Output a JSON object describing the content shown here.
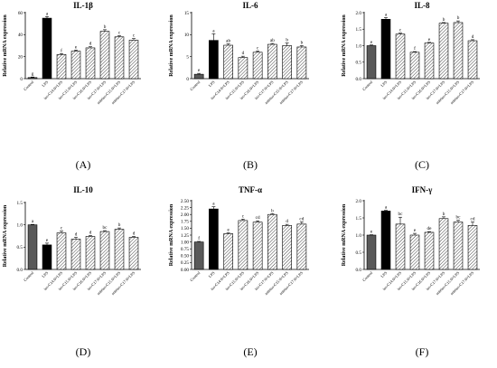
{
  "chart_data": [
    {
      "type": "bar",
      "panel_label": "(A)",
      "title": "IL-1β",
      "ylabel": "Relative mRNA expression",
      "categories": [
        "Control",
        "LPS",
        "iso-C14:0+LPS",
        "iso-C15:0+LPS",
        "iso-C16:0+LPS",
        "iso-C17:0+LPS",
        "anteiso-C15:0+LPS",
        "anteiso-C17:0+LPS"
      ],
      "values": [
        1,
        55,
        22,
        25,
        28,
        43,
        38,
        35
      ],
      "errors": [
        0.5,
        1.5,
        0.8,
        1.0,
        1.0,
        1.5,
        1.0,
        1.5
      ],
      "letters": [
        "g",
        "a",
        "f",
        "e",
        "d",
        "b",
        "c",
        "c"
      ],
      "ylim": [
        0,
        60
      ],
      "yticks": [
        "0",
        "20",
        "40",
        "60"
      ]
    },
    {
      "type": "bar",
      "panel_label": "(B)",
      "title": "IL-6",
      "ylabel": "Relative mRNA expression",
      "categories": [
        "Control",
        "LPS",
        "iso-C14:0+LPS",
        "iso-C15:0+LPS",
        "iso-C16:0+LPS",
        "iso-C17:0+LPS",
        "anteiso-C15:0+LPS",
        "anteiso-C17:0+LPS"
      ],
      "values": [
        1,
        8.7,
        7.6,
        4.8,
        6.0,
        7.8,
        7.5,
        7.2
      ],
      "errors": [
        0.2,
        1.5,
        0.3,
        0.3,
        0.3,
        0.2,
        0.6,
        0.3
      ],
      "letters": [
        "e",
        "a",
        "ab",
        "d",
        "c",
        "ab",
        "b",
        "b"
      ],
      "ylim": [
        0,
        15
      ],
      "yticks": [
        "0",
        "5",
        "10",
        "15"
      ]
    },
    {
      "type": "bar",
      "panel_label": "(C)",
      "title": "IL-8",
      "ylabel": "Relative mRNA expression",
      "categories": [
        "Control",
        "LPS",
        "iso-C14:0+LPS",
        "iso-C15:0+LPS",
        "iso-C16:0+LPS",
        "iso-C17:0+LPS",
        "anteiso-C15:0+LPS",
        "anteiso-C17:0+LPS"
      ],
      "values": [
        1.0,
        1.8,
        1.35,
        0.8,
        1.08,
        1.68,
        1.7,
        1.15
      ],
      "errors": [
        0.02,
        0.05,
        0.03,
        0.02,
        0.02,
        0.02,
        0.05,
        0.03
      ],
      "letters": [
        "e",
        "a",
        "c",
        "f",
        "e",
        "b",
        "b",
        "d"
      ],
      "ylim": [
        0,
        2.0
      ],
      "yticks": [
        "0.0",
        "0.5",
        "1.0",
        "1.5",
        "2.0"
      ]
    },
    {
      "type": "bar",
      "panel_label": "(D)",
      "title": "IL-10",
      "ylabel": "Relative mRNA expression",
      "categories": [
        "Control",
        "LPS",
        "iso-C14:0+LPS",
        "iso-C15:0+LPS",
        "iso-C16:0+LPS",
        "iso-C17:0+LPS",
        "anteiso-C15:0+LPS",
        "anteiso-C17:0+LPS"
      ],
      "values": [
        1.0,
        0.55,
        0.82,
        0.68,
        0.74,
        0.85,
        0.9,
        0.72
      ],
      "errors": [
        0.01,
        0.04,
        0.04,
        0.04,
        0.02,
        0.02,
        0.03,
        0.02
      ],
      "letters": [
        "a",
        "e",
        "c",
        "d",
        "d",
        "bc",
        "b",
        "d"
      ],
      "ylim": [
        0,
        1.5
      ],
      "yticks": [
        "0.0",
        "0.5",
        "1.0",
        "1.5"
      ]
    },
    {
      "type": "bar",
      "panel_label": "(E)",
      "title": "TNF-α",
      "ylabel": "Relative mRNA expression",
      "categories": [
        "Control",
        "LPS",
        "iso-C14:0+LPS",
        "iso-C15:0+LPS",
        "iso-C16:0+LPS",
        "iso-C17:0+LPS",
        "anteiso-C15:0+LPS",
        "anteiso-C17:0+LPS"
      ],
      "values": [
        1.0,
        2.2,
        1.3,
        1.78,
        1.72,
        2.0,
        1.6,
        1.65
      ],
      "errors": [
        0.02,
        0.08,
        0.03,
        0.05,
        0.05,
        0.03,
        0.04,
        0.08
      ],
      "letters": [
        "f",
        "a",
        "e",
        "c",
        "cd",
        "b",
        "d",
        "cd"
      ],
      "ylim": [
        0,
        2.5
      ],
      "yticks": [
        "0.00",
        "0.25",
        "0.50",
        "0.75",
        "1.00",
        "1.25",
        "1.50",
        "1.75",
        "2.00",
        "2.25",
        "2.50"
      ]
    },
    {
      "type": "bar",
      "panel_label": "(F)",
      "title": "IFN-γ",
      "ylabel": "Relative mRNA expression",
      "categories": [
        "Control",
        "LPS",
        "iso-C14:0+LPS",
        "iso-C15:0+LPS",
        "iso-C16:0+LPS",
        "iso-C17:0+LPS",
        "anteiso-C15:0+LPS",
        "anteiso-C17:0+LPS"
      ],
      "values": [
        1.0,
        1.7,
        1.32,
        1.0,
        1.08,
        1.48,
        1.38,
        1.28
      ],
      "errors": [
        0.01,
        0.02,
        0.2,
        0.05,
        0.02,
        0.05,
        0.05,
        0.1
      ],
      "letters": [
        "e",
        "a",
        "bc",
        "e",
        "de",
        "b",
        "bc",
        "cd"
      ],
      "ylim": [
        0,
        2.0
      ],
      "yticks": [
        "0.0",
        "0.5",
        "1.0",
        "1.5",
        "2.0"
      ]
    }
  ],
  "colors": {
    "control_fill": "#595959",
    "lps_fill": "#000000",
    "treatment_fill": "#ffffff",
    "hatch_stroke": "#333333"
  }
}
